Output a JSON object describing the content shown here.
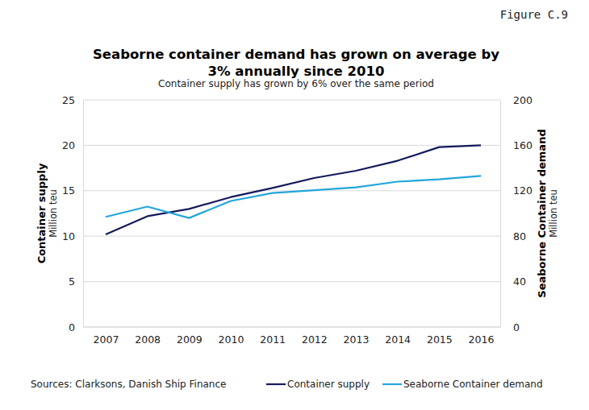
{
  "chart_data": {
    "type": "line",
    "title": "Seaborne container demand has grown on average by 3% annually since 2010",
    "subtitle": "Container supply has grown by 6% over the same period",
    "annotations": [
      "Figure C.9"
    ],
    "source": "Sources: Clarksons, Danish Ship Finance",
    "ylabel": "Container supply",
    "yunit": "Million teu",
    "y2label": "Seaborne Container demand",
    "y2unit": "Million teu",
    "categories": [
      "2007",
      "2008",
      "2009",
      "2010",
      "2011",
      "2012",
      "2013",
      "2014",
      "2015",
      "2016"
    ],
    "ylim": [
      0,
      25
    ],
    "yticks": [
      0,
      5,
      10,
      15,
      20,
      25
    ],
    "y2lim": [
      0,
      200
    ],
    "y2ticks": [
      0,
      40,
      80,
      120,
      160,
      200
    ],
    "grid": true,
    "legend": "bottom",
    "series": [
      {
        "name": "Container supply",
        "color": "#141a5c",
        "values": [
          10.2,
          12.2,
          13.0,
          14.3,
          15.3,
          16.4,
          17.2,
          18.3,
          19.8,
          20.0
        ]
      },
      {
        "name": "Seaborne Container demand",
        "color": "#23a6dc",
        "axis": "y2",
        "values": [
          97,
          106,
          96,
          111,
          118,
          120.5,
          123,
          128,
          130,
          133
        ]
      }
    ]
  }
}
